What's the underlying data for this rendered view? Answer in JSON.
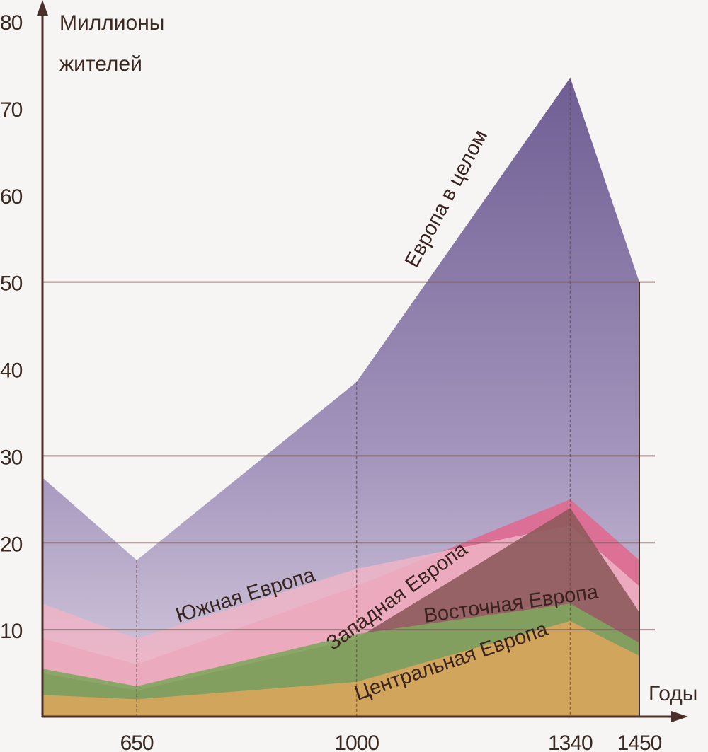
{
  "chart_data": {
    "type": "area",
    "ylabel": [
      "Миллионы",
      "жителей"
    ],
    "xlabel": "Годы",
    "x": [
      500,
      650,
      1000,
      1340,
      1450
    ],
    "x_tick_labels": [
      "650",
      "1000",
      "1340",
      "1450"
    ],
    "x_ticks": [
      650,
      1000,
      1340,
      1450
    ],
    "y_ticks": [
      10,
      20,
      30,
      40,
      50,
      60,
      70,
      80
    ],
    "y_gridlines": [
      10,
      20,
      30,
      50
    ],
    "ylim": [
      0,
      80
    ],
    "xlim": [
      500,
      1450
    ],
    "series": [
      {
        "name": "Европа в целом",
        "values": [
          27.5,
          18,
          38.5,
          73.5,
          50
        ],
        "color": "#8e80ac"
      },
      {
        "name": "Западная Европа",
        "values": [
          9,
          6,
          15,
          25,
          18
        ],
        "color": "#e0698f"
      },
      {
        "name": "Южная Европа",
        "values": [
          13,
          9,
          17,
          22,
          15
        ],
        "color": "#eeb4c6"
      },
      {
        "name": "Восточная Европа",
        "values": [
          5,
          3,
          9,
          24,
          12
        ],
        "color": "#8e5a5c"
      },
      {
        "name": "Центральная Европа",
        "values": [
          2.5,
          2,
          4,
          11,
          7
        ],
        "color": "#d9a55c"
      }
    ],
    "extra_band": {
      "values": [
        5.5,
        3.5,
        9.5,
        13,
        8.5
      ],
      "color": "#7fa65e"
    }
  }
}
